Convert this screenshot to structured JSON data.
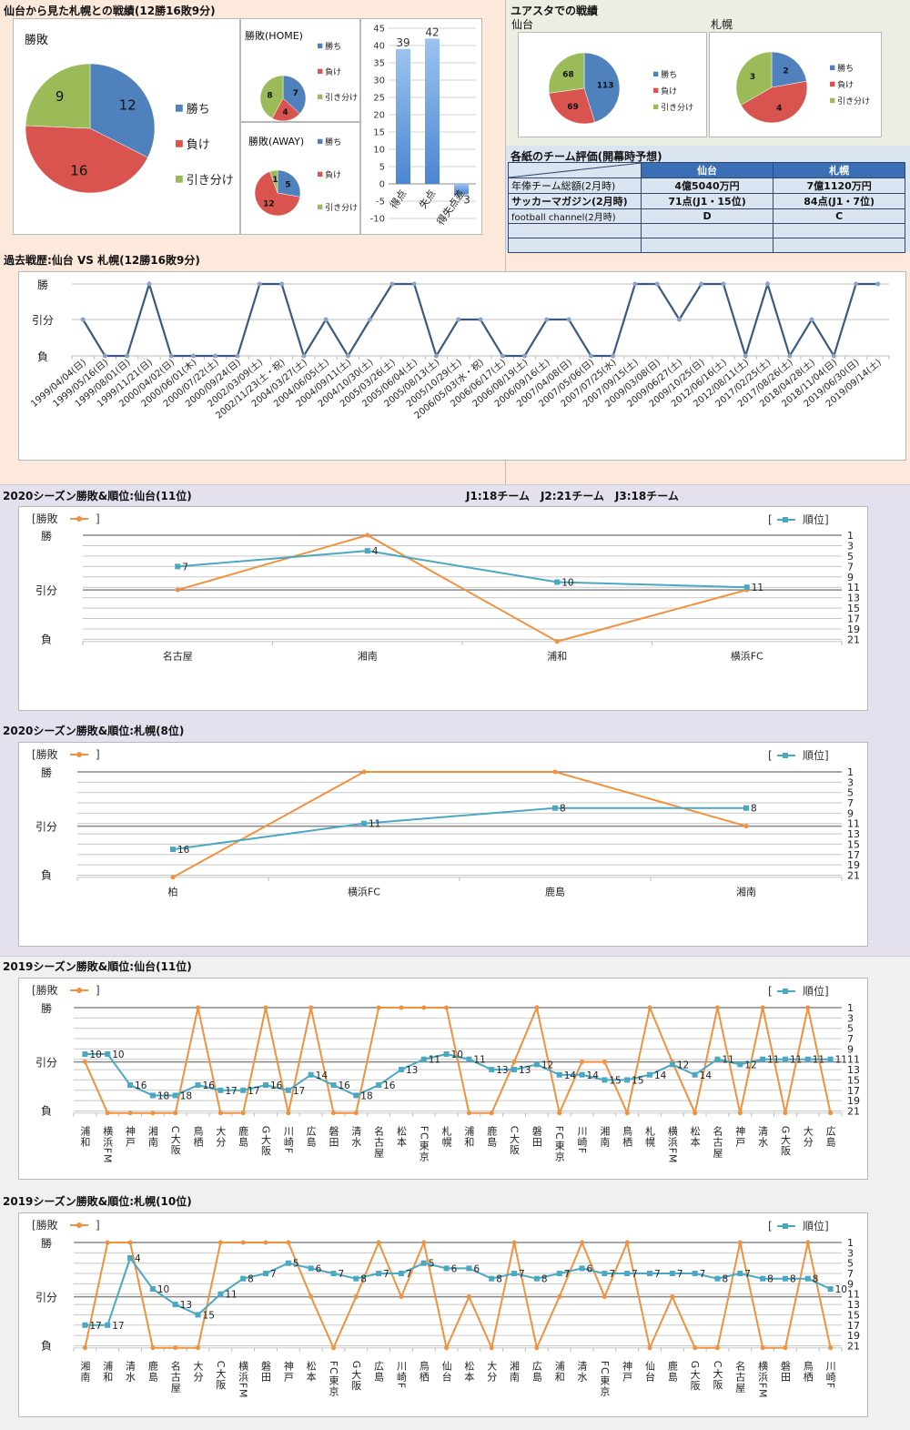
{
  "colors": {
    "win": "#4f81bd",
    "loss": "#d9534f",
    "draw": "#9bbb59",
    "bar": "#4a86d0",
    "history_line": "#3a5a82",
    "wl_line": "#f0913e",
    "rank_line": "#4ba8c2",
    "bg_head": "#fce9dc",
    "bg_top_right": "#ebefe3",
    "bg_2020": "#e4e0ee",
    "bg_2019": "#f0f0f0"
  },
  "summary": {
    "title": "仙台から見た札幌との戦績(12勝16敗9分)",
    "legend": [
      "勝ち",
      "負け",
      "引き分け"
    ]
  },
  "home_stadium": {
    "title": "ユアスタでの戦績",
    "sendai_label": "仙台",
    "sapporo_label": "札幌"
  },
  "eval_table": {
    "title": "各紙のチーム評価(開幕時予想)",
    "headers": [
      "",
      "仙台",
      "札幌"
    ],
    "rows": [
      [
        "年俸チーム総額(2月時)",
        "4億5040万円",
        "7億1120万円"
      ],
      [
        "サッカーマガジン(2月時)",
        "71点(J1・15位)",
        "84点(J1・7位)"
      ],
      [
        "football channel(2月時)",
        "D",
        "C"
      ],
      [
        "",
        "",
        ""
      ],
      [
        "",
        "",
        ""
      ]
    ]
  },
  "history": {
    "title": "過去戦歴:仙台 VS 札幌(12勝16敗9分)"
  },
  "s2020_sendai": {
    "title": "2020シーズン勝敗&順位:仙台(11位)",
    "league_note": "J1:18チーム　J2:21チーム　J3:18チーム"
  },
  "s2020_sapporo": {
    "title": "2020シーズン勝敗&順位:札幌(8位)"
  },
  "s2019_sendai": {
    "title": "2019シーズン勝敗&順位:仙台(11位)"
  },
  "s2019_sapporo": {
    "title": "2019シーズン勝敗&順位:札幌(10位)"
  },
  "common": {
    "wl_legend": "[勝敗",
    "wl_legend_close": "]",
    "rank_legend_open": "[",
    "rank_legend": "順位]",
    "y_win": "勝",
    "y_draw": "引分",
    "y_loss": "負"
  },
  "chart_data": [
    {
      "id": "pie_total",
      "type": "pie",
      "title": "勝敗",
      "labels": [
        "勝ち",
        "負け",
        "引き分け"
      ],
      "values": [
        12,
        16,
        9
      ]
    },
    {
      "id": "pie_home",
      "type": "pie",
      "title": "勝敗(HOME)",
      "labels": [
        "勝ち",
        "負け",
        "引き分け"
      ],
      "values": [
        7,
        4,
        8
      ]
    },
    {
      "id": "pie_away",
      "type": "pie",
      "title": "勝敗(AWAY)",
      "labels": [
        "勝ち",
        "負け",
        "引き分け"
      ],
      "values": [
        5,
        12,
        1
      ]
    },
    {
      "id": "bar_goals",
      "type": "bar",
      "categories": [
        "得点",
        "失点",
        "得失点差"
      ],
      "values": [
        39,
        42,
        -3
      ],
      "data_labels": [
        "39",
        "42",
        "3"
      ],
      "ylim": [
        -10,
        45
      ],
      "yticks": [
        45,
        40,
        35,
        30,
        25,
        20,
        15,
        10,
        5,
        0,
        -5,
        -10
      ]
    },
    {
      "id": "pie_yuasta_sendai",
      "type": "pie",
      "title": "仙台",
      "labels": [
        "勝ち",
        "負け",
        "引き分け"
      ],
      "values": [
        113,
        69,
        68
      ]
    },
    {
      "id": "pie_yuasta_sapporo",
      "type": "pie",
      "title": "札幌",
      "labels": [
        "勝ち",
        "負け",
        "引き分け"
      ],
      "values": [
        2,
        4,
        3
      ]
    },
    {
      "id": "history_line",
      "type": "line",
      "title": "過去戦歴:仙台 VS 札幌(12勝16敗9分)",
      "yticklabels": [
        "勝",
        "引分",
        "負"
      ],
      "categories": [
        "1999/04/04(日)",
        "1999/05/16(日)",
        "1999/08/01(日)",
        "1999/11/21(日)",
        "2000/04/02(日)",
        "2000/06/01(木)",
        "2000/07/22(土)",
        "2000/09/24(日)",
        "2002/03/09(土)",
        "2002/11/23(土・祝)",
        "2004/03/27(土)",
        "2004/06/05(土)",
        "2004/09/11(土)",
        "2004/10/30(土)",
        "2005/03/26(土)",
        "2005/06/04(土)",
        "2005/08/13(土)",
        "2005/10/29(土)",
        "2006/05/03(水・祝)",
        "2006/06/17(土)",
        "2006/08/19(土)",
        "2006/09/16(土)",
        "2007/04/08(日)",
        "2007/05/06(日)",
        "2007/07/25(水)",
        "2007/09/15(土)",
        "2009/03/08(日)",
        "2009/06/27(土)",
        "2009/10/25(日)",
        "2012/06/16(土)",
        "2012/08/11(土)",
        "2017/02/25(土)",
        "2017/08/26(土)",
        "2018/04/28(土)",
        "2018/11/04(日)",
        "2019/06/30(日)",
        "2019/09/14(土)"
      ],
      "results": [
        "D",
        "L",
        "L",
        "W",
        "L",
        "L",
        "L",
        "L",
        "W",
        "W",
        "L",
        "D",
        "L",
        "D",
        "W",
        "W",
        "L",
        "D",
        "D",
        "L",
        "L",
        "D",
        "D",
        "L",
        "L",
        "W",
        "W",
        "D",
        "W",
        "W",
        "L",
        "W",
        "L",
        "D",
        "L",
        "W",
        "W"
      ]
    },
    {
      "id": "s2020_sendai",
      "type": "line",
      "title": "2020シーズン勝敗&順位:仙台(11位)",
      "categories": [
        "名古屋",
        "湘南",
        "浦和",
        "横浜FC"
      ],
      "results": [
        "D",
        "W",
        "L",
        "D"
      ],
      "ranks": [
        7,
        4,
        10,
        11
      ],
      "rank_ticks": [
        1,
        3,
        5,
        7,
        9,
        11,
        13,
        15,
        17,
        19,
        21
      ]
    },
    {
      "id": "s2020_sapporo",
      "type": "line",
      "title": "2020シーズン勝敗&順位:札幌(8位)",
      "categories": [
        "柏",
        "横浜FC",
        "鹿島",
        "湘南"
      ],
      "results": [
        "L",
        "W",
        "W",
        "D"
      ],
      "ranks": [
        16,
        11,
        8,
        8
      ],
      "rank_ticks": [
        1,
        3,
        5,
        7,
        9,
        11,
        13,
        15,
        17,
        19,
        21
      ]
    },
    {
      "id": "s2019_sendai",
      "type": "line",
      "title": "2019シーズン勝敗&順位:仙台(11位)",
      "categories": [
        "浦和",
        "横浜FM",
        "神戸",
        "湘南",
        "C大阪",
        "鳥栖",
        "大分",
        "鹿島",
        "G大阪",
        "川崎F",
        "広島",
        "磐田",
        "清水",
        "名古屋",
        "松本",
        "FC東京",
        "札幌",
        "浦和",
        "鹿島",
        "C大阪",
        "磐田",
        "FC東京",
        "川崎F",
        "湘南",
        "鳥栖",
        "札幌",
        "横浜FM",
        "松本",
        "名古屋",
        "神戸",
        "清水",
        "G大阪",
        "大分",
        "広島"
      ],
      "results": [
        "D",
        "L",
        "L",
        "L",
        "L",
        "W",
        "L",
        "L",
        "W",
        "L",
        "W",
        "L",
        "L",
        "W",
        "W",
        "W",
        "W",
        "L",
        "L",
        "D",
        "W",
        "L",
        "D",
        "D",
        "L",
        "W",
        "D",
        "L",
        "W",
        "L",
        "W",
        "L",
        "W",
        "L"
      ],
      "ranks": [
        10,
        10,
        16,
        18,
        18,
        16,
        17,
        17,
        16,
        17,
        14,
        16,
        18,
        16,
        13,
        11,
        10,
        11,
        13,
        13,
        12,
        14,
        14,
        15,
        15,
        14,
        12,
        14,
        11,
        12,
        11,
        11,
        11,
        11
      ],
      "rank_ticks": [
        1,
        3,
        5,
        7,
        9,
        11,
        13,
        15,
        17,
        19,
        21
      ]
    },
    {
      "id": "s2019_sapporo",
      "type": "line",
      "title": "2019シーズン勝敗&順位:札幌(10位)",
      "categories": [
        "湘南",
        "浦和",
        "清水",
        "鹿島",
        "名古屋",
        "大分",
        "C大阪",
        "横浜FM",
        "磐田",
        "神戸",
        "松本",
        "FC東京",
        "G大阪",
        "広島",
        "川崎F",
        "鳥栖",
        "仙台",
        "松本",
        "大分",
        "湘南",
        "広島",
        "浦和",
        "清水",
        "FC東京",
        "神戸",
        "仙台",
        "鹿島",
        "G大阪",
        "C大阪",
        "名古屋",
        "横浜FM",
        "磐田",
        "鳥栖",
        "川崎F"
      ],
      "results": [
        "L",
        "W",
        "W",
        "L",
        "L",
        "L",
        "W",
        "W",
        "W",
        "W",
        "D",
        "L",
        "D",
        "W",
        "D",
        "W",
        "L",
        "D",
        "L",
        "W",
        "L",
        "D",
        "W",
        "D",
        "W",
        "L",
        "D",
        "L",
        "L",
        "W",
        "L",
        "L",
        "W",
        "L"
      ],
      "ranks": [
        17,
        17,
        4,
        10,
        13,
        15,
        11,
        8,
        7,
        5,
        6,
        7,
        8,
        7,
        7,
        5,
        6,
        6,
        8,
        7,
        8,
        7,
        6,
        7,
        7,
        7,
        7,
        7,
        8,
        7,
        8,
        8,
        8,
        10
      ],
      "rank_ticks": [
        1,
        3,
        5,
        7,
        9,
        11,
        13,
        15,
        17,
        19,
        21
      ]
    }
  ]
}
